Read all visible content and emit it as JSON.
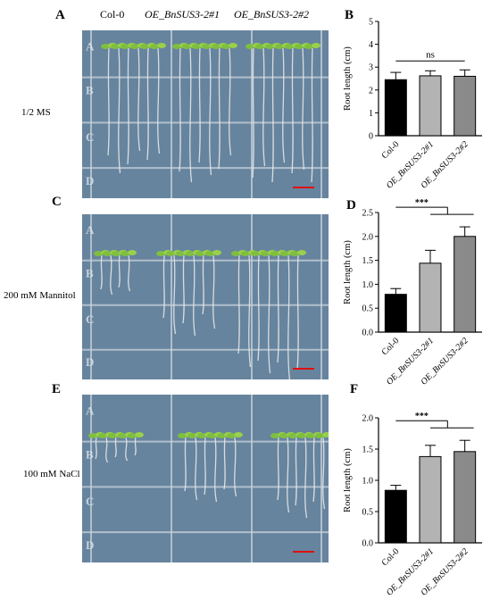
{
  "header": {
    "genotypes": [
      "Col-0",
      "OE_BnSUS3-2#1",
      "OE_BnSUS3-2#2"
    ]
  },
  "panels": {
    "A": {
      "letter": "A",
      "condition": "1/2 MS"
    },
    "B": {
      "letter": "B"
    },
    "C": {
      "letter": "C",
      "condition": "200 mM Mannitol"
    },
    "D": {
      "letter": "D"
    },
    "E": {
      "letter": "E",
      "condition": "100 mM NaCl"
    },
    "F": {
      "letter": "F"
    }
  },
  "plate_row_labels": [
    "A",
    "B",
    "C",
    "D"
  ],
  "colors": {
    "bar_col0": "#000000",
    "bar_oe1": "#b3b3b3",
    "bar_oe2": "#8a8a8a",
    "scale_bar": "#e01010",
    "plate_bg": "#5d7d98",
    "grid_line": "#c9d3dc",
    "seedling_leaf": "#7fbf3f",
    "root": "#e6e6e6"
  },
  "chart_data": [
    {
      "type": "bar",
      "panel": "B",
      "categories": [
        "Col-0",
        "OE_BnSUS3-2#1",
        "OE_BnSUS3-2#2"
      ],
      "values": [
        2.45,
        2.62,
        2.6
      ],
      "errors": [
        0.32,
        0.22,
        0.28
      ],
      "ylabel": "Root length (cm)",
      "ylim": [
        0,
        5
      ],
      "yticks": [
        0,
        1,
        2,
        3,
        4,
        5
      ],
      "significance": "ns"
    },
    {
      "type": "bar",
      "panel": "D",
      "categories": [
        "Col-0",
        "OE_BnSUS3-2#1",
        "OE_BnSUS3-2#2"
      ],
      "values": [
        0.79,
        1.44,
        2.0
      ],
      "errors": [
        0.12,
        0.27,
        0.2
      ],
      "ylabel": "Root length (cm)",
      "ylim": [
        0,
        2.5
      ],
      "yticks": [
        0.0,
        0.5,
        1.0,
        1.5,
        2.0,
        2.5
      ],
      "significance": "***"
    },
    {
      "type": "bar",
      "panel": "F",
      "categories": [
        "Col-0",
        "OE_BnSUS3-2#1",
        "OE_BnSUS3-2#2"
      ],
      "values": [
        0.84,
        1.38,
        1.46
      ],
      "errors": [
        0.08,
        0.18,
        0.18
      ],
      "ylabel": "Root length (cm)",
      "ylim": [
        0,
        2.0
      ],
      "yticks": [
        0.0,
        0.5,
        1.0,
        1.5,
        2.0
      ],
      "significance": "***"
    }
  ]
}
